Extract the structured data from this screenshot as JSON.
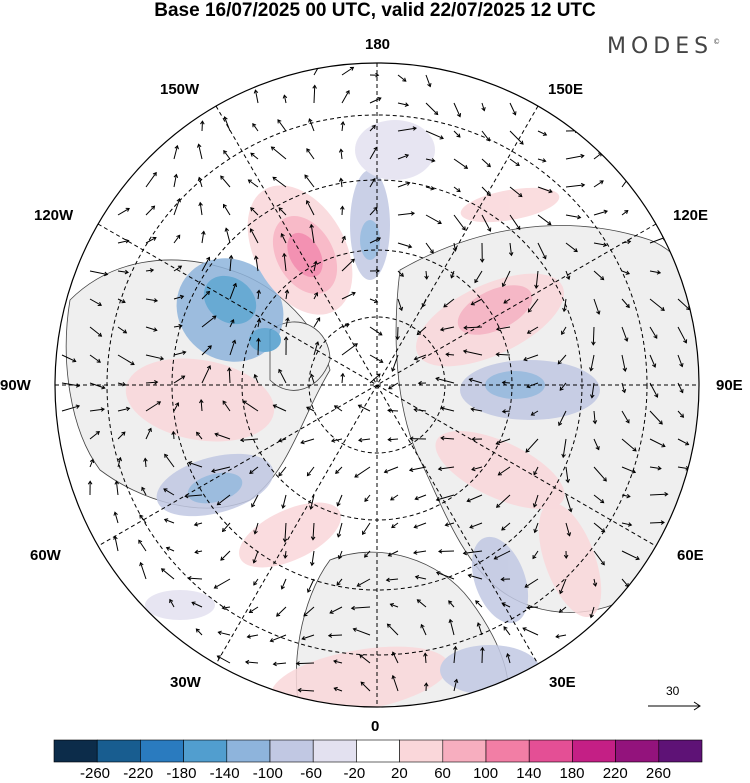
{
  "header": {
    "title": "Base 16/07/2025 00 UTC, valid 22/07/2025 12 UTC",
    "brand": "MODES",
    "brand_mark": "©"
  },
  "map": {
    "projection": "north polar stereographic",
    "longitude_labels": {
      "top": "180",
      "top_left": "150W",
      "top_right": "150E",
      "upper_left": "120W",
      "upper_right": "120E",
      "left": "90W",
      "right": "90E",
      "lower_left": "60W",
      "lower_right": "60E",
      "bottom_left": "30W",
      "bottom_right": "30E",
      "bottom": "0"
    },
    "wind_reference": "30",
    "anomalies": [
      {
        "region": "North Pacific / Alaska",
        "sign": "negative",
        "level": -100
      },
      {
        "region": "Bering Sea",
        "sign": "positive",
        "level": 140
      },
      {
        "region": "Chukchi",
        "sign": "negative",
        "level": -60
      },
      {
        "region": "Canada",
        "sign": "negative",
        "level": -180
      },
      {
        "region": "Central Siberia",
        "sign": "positive",
        "level": 100
      },
      {
        "region": "Western Siberia",
        "sign": "negative",
        "level": -100
      },
      {
        "region": "North Atlantic",
        "sign": "negative",
        "level": -140
      },
      {
        "region": "Central Asia",
        "sign": "positive",
        "level": 60
      }
    ]
  },
  "colorbar": {
    "colors": [
      "#0c2c4a",
      "#185d90",
      "#2a7bbf",
      "#519ecf",
      "#8eb4dc",
      "#c1c8e3",
      "#e3e1f0",
      "#ffffff",
      "#fad7da",
      "#f7aebf",
      "#f27ea5",
      "#e44f95",
      "#c41f85",
      "#93137c",
      "#5e1276"
    ],
    "ticks": [
      "-260",
      "-220",
      "-180",
      "-140",
      "-100",
      "-60",
      "-20",
      "20",
      "60",
      "100",
      "140",
      "180",
      "220",
      "260"
    ]
  }
}
